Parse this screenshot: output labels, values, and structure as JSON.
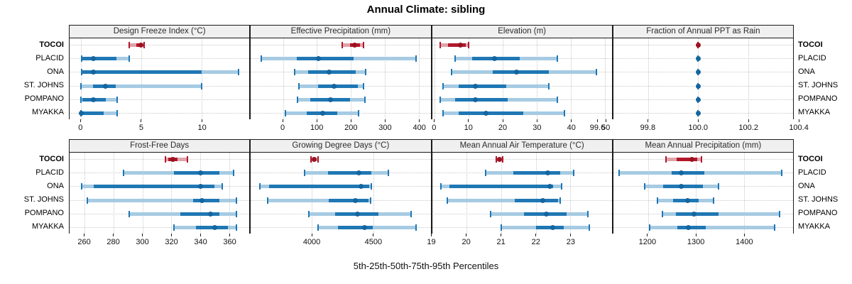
{
  "chart_data": {
    "type": "multi-panel-dotplot",
    "title": "Annual Climate: sibling",
    "caption": "5th-25th-50th-75th-95th Percentiles",
    "percentiles": [
      5,
      25,
      50,
      75,
      95
    ],
    "sites": [
      "TOCOI",
      "PLACID",
      "ONA",
      "ST. JOHNS",
      "POMPANO",
      "MYAKKA"
    ],
    "highlight_site": "TOCOI",
    "legend_position": "none",
    "grid": "dotted",
    "colors": {
      "site_default": "#1f77b4",
      "site_default_light": "#a6cbe3",
      "highlight": "#b2182b",
      "highlight_light": "#e0a3a9",
      "gridline": "#c8c8c8",
      "header_bg": "#f0f0f0",
      "border": "#1b1b1b"
    },
    "panels": [
      {
        "id": "design_freeze_index",
        "label": "Design Freeze Index (°C)",
        "axis": {
          "min": -0.95,
          "max": 13.95,
          "ticks": [
            {
              "value": 0,
              "label": "0"
            },
            {
              "value": 5,
              "label": "5"
            },
            {
              "value": 10,
              "label": "10"
            }
          ]
        },
        "values": {
          "TOCOI": [
            4.0,
            4.6,
            4.95,
            5.1,
            5.2
          ],
          "PLACID": [
            0.05,
            0.1,
            1.0,
            2.95,
            4.0
          ],
          "ONA": [
            0.05,
            0.1,
            1.0,
            10.0,
            13.05
          ],
          "ST. JOHNS": [
            0.0,
            1.0,
            2.0,
            2.85,
            10.0
          ],
          "POMPANO": [
            0.0,
            0.1,
            1.0,
            2.05,
            3.0
          ],
          "MYAKKA": [
            0.0,
            0.0,
            0.05,
            1.9,
            3.0
          ]
        }
      },
      {
        "id": "effective_precipitation",
        "label": "Effective Precipitation (mm)",
        "axis": {
          "min": -95,
          "max": 435,
          "ticks": [
            {
              "value": 0,
              "label": "0"
            },
            {
              "value": 100,
              "label": "100"
            },
            {
              "value": 200,
              "label": "200"
            },
            {
              "value": 300,
              "label": "300"
            },
            {
              "value": 400,
              "label": "400"
            }
          ]
        },
        "values": {
          "TOCOI": [
            175,
            198,
            212,
            226,
            238
          ],
          "PLACID": [
            -65,
            40,
            104,
            207,
            393
          ],
          "ONA": [
            34,
            73,
            135,
            214,
            243
          ],
          "ST. JOHNS": [
            47,
            104,
            151,
            221,
            237
          ],
          "POMPANO": [
            42,
            80,
            140,
            197,
            242
          ],
          "MYAKKA": [
            6,
            70,
            116,
            159,
            223
          ]
        }
      },
      {
        "id": "elevation",
        "label": "Elevation (m)",
        "axis": {
          "min": -0.8,
          "max": 52,
          "ticks": [
            {
              "value": 0,
              "label": "0"
            },
            {
              "value": 10,
              "label": "10"
            },
            {
              "value": 20,
              "label": "20"
            },
            {
              "value": 30,
              "label": "30"
            },
            {
              "value": 40,
              "label": "40"
            },
            {
              "value": 50,
              "label": "50"
            }
          ]
        },
        "values": {
          "TOCOI": [
            1.5,
            3.8,
            7.6,
            9.0,
            9.9
          ],
          "PLACID": [
            6,
            11,
            17.5,
            25,
            36
          ],
          "ONA": [
            5,
            17,
            24,
            33.5,
            47.5
          ],
          "ST. JOHNS": [
            2.5,
            7,
            12,
            21,
            33.5
          ],
          "POMPANO": [
            1.5,
            6,
            12,
            21.5,
            36
          ],
          "MYAKKA": [
            2.5,
            7,
            15,
            26,
            38
          ]
        }
      },
      {
        "id": "fraction_ppt_rain",
        "label": "Fraction of Annual PPT as Rain",
        "axis": {
          "min": 99.66,
          "max": 100.38,
          "ticks": [
            {
              "value": 99.6,
              "label": "99.6"
            },
            {
              "value": 99.8,
              "label": "99.8"
            },
            {
              "value": 100.0,
              "label": "100.0"
            },
            {
              "value": 100.2,
              "label": "100.2"
            },
            {
              "value": 100.4,
              "label": "100.4"
            }
          ]
        },
        "values": {
          "TOCOI": [
            100,
            100,
            100,
            100,
            100
          ],
          "PLACID": [
            100,
            100,
            100,
            100,
            100
          ],
          "ONA": [
            100,
            100,
            100,
            100,
            100
          ],
          "ST. JOHNS": [
            100,
            100,
            100,
            100,
            100
          ],
          "POMPANO": [
            100,
            100,
            100,
            100,
            100
          ],
          "MYAKKA": [
            100,
            100,
            100,
            100,
            100
          ]
        }
      },
      {
        "id": "frost_free_days",
        "label": "Frost-Free Days",
        "axis": {
          "min": 249.5,
          "max": 374,
          "ticks": [
            {
              "value": 260,
              "label": "260"
            },
            {
              "value": 280,
              "label": "280"
            },
            {
              "value": 300,
              "label": "300"
            },
            {
              "value": 320,
              "label": "320"
            },
            {
              "value": 340,
              "label": "340"
            },
            {
              "value": 360,
              "label": "360"
            }
          ]
        },
        "values": {
          "TOCOI": [
            316,
            318,
            321,
            324,
            331
          ],
          "PLACID": [
            287,
            322,
            340,
            353,
            363
          ],
          "ONA": [
            258,
            266,
            340,
            350,
            355
          ],
          "ST. JOHNS": [
            262,
            335,
            341,
            353,
            365
          ],
          "POMPANO": [
            291,
            326,
            347,
            353,
            365
          ],
          "MYAKKA": [
            322,
            337,
            350,
            359,
            365
          ]
        }
      },
      {
        "id": "growing_degree_days",
        "label": "Growing Degree Days (°C)",
        "axis": {
          "min": 3500,
          "max": 4970,
          "ticks": [
            {
              "value": 4000,
              "label": "4000"
            },
            {
              "value": 4500,
              "label": "4500"
            }
          ]
        },
        "values": {
          "TOCOI": [
            3990,
            4005,
            4017,
            4035,
            4050
          ],
          "PLACID": [
            3940,
            4130,
            4385,
            4485,
            4625
          ],
          "ONA": [
            3575,
            3650,
            4400,
            4470,
            4485
          ],
          "ST. JOHNS": [
            3640,
            4135,
            4355,
            4465,
            4480
          ],
          "POMPANO": [
            3975,
            4190,
            4375,
            4545,
            4810
          ],
          "MYAKKA": [
            4050,
            4210,
            4430,
            4495,
            4850
          ]
        }
      },
      {
        "id": "mean_annual_air_temperature",
        "label": "Mean Annual Air Temperature (°C)",
        "axis": {
          "min": 19.0,
          "max": 24.2,
          "ticks": [
            {
              "value": 19,
              "label": "19"
            },
            {
              "value": 20,
              "label": "20"
            },
            {
              "value": 21,
              "label": "21"
            },
            {
              "value": 22,
              "label": "22"
            },
            {
              "value": 23,
              "label": "23"
            }
          ]
        },
        "values": {
          "TOCOI": [
            20.85,
            20.9,
            20.95,
            21.0,
            21.05
          ],
          "PLACID": [
            20.55,
            21.35,
            22.35,
            22.7,
            23.1
          ],
          "ONA": [
            19.25,
            19.5,
            22.4,
            22.5,
            22.75
          ],
          "ST. JOHNS": [
            19.45,
            21.4,
            22.2,
            22.65,
            22.7
          ],
          "POMPANO": [
            20.7,
            21.65,
            22.3,
            22.9,
            23.5
          ],
          "MYAKKA": [
            21.0,
            22.0,
            22.5,
            22.8,
            23.55
          ]
        }
      },
      {
        "id": "mean_annual_precipitation",
        "label": "Mean Annual Precipitation (mm)",
        "axis": {
          "min": 1128,
          "max": 1502,
          "ticks": [
            {
              "value": 1200,
              "label": "1200"
            },
            {
              "value": 1300,
              "label": "1300"
            },
            {
              "value": 1400,
              "label": "1400"
            }
          ]
        },
        "values": {
          "TOCOI": [
            1237,
            1260,
            1292,
            1302,
            1311
          ],
          "PLACID": [
            1140,
            1250,
            1270,
            1317,
            1478
          ],
          "ONA": [
            1194,
            1232,
            1269,
            1315,
            1347
          ],
          "ST. JOHNS": [
            1220,
            1253,
            1283,
            1305,
            1337
          ],
          "POMPANO": [
            1230,
            1258,
            1296,
            1347,
            1474
          ],
          "MYAKKA": [
            1203,
            1261,
            1284,
            1320,
            1464
          ]
        }
      }
    ]
  }
}
